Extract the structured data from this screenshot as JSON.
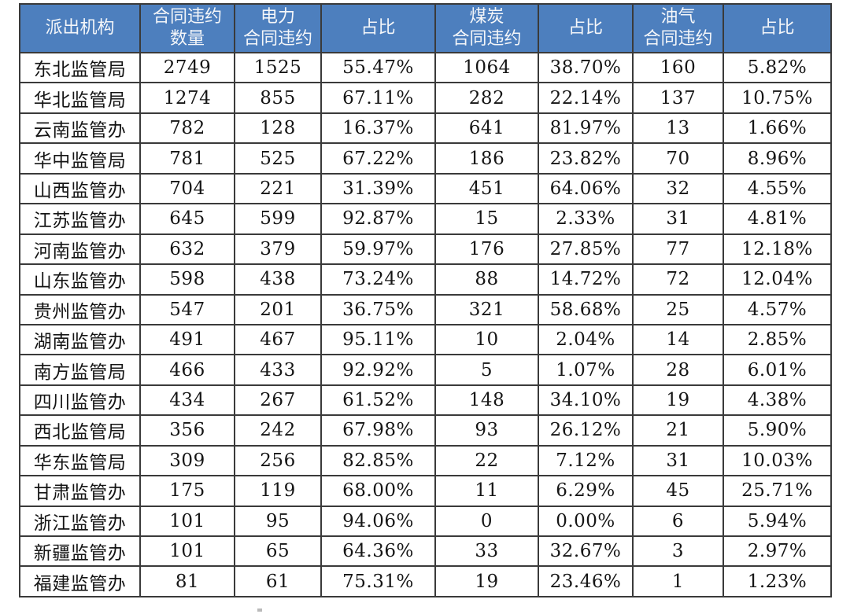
{
  "colors": {
    "header_bg": "#4d7fbe",
    "header_text": "#f4f6f9",
    "grid_border": "#3a3a3a",
    "body_text": "#151515"
  },
  "chart_data": {
    "type": "table",
    "columns": [
      {
        "key": "agency",
        "label": "派出机构"
      },
      {
        "key": "total",
        "label": "合同违约\n数量"
      },
      {
        "key": "power",
        "label": "电力\n合同违约"
      },
      {
        "key": "power-share",
        "label": "占比"
      },
      {
        "key": "coal",
        "label": "煤炭\n合同违约"
      },
      {
        "key": "coal-share",
        "label": "占比"
      },
      {
        "key": "oilgas",
        "label": "油气\n合同违约"
      },
      {
        "key": "oilgas-share",
        "label": "占比"
      }
    ],
    "rows": [
      [
        "东北监管局",
        "2749",
        "1525",
        "55.47%",
        "1064",
        "38.70%",
        "160",
        "5.82%"
      ],
      [
        "华北监管局",
        "1274",
        "855",
        "67.11%",
        "282",
        "22.14%",
        "137",
        "10.75%"
      ],
      [
        "云南监管办",
        "782",
        "128",
        "16.37%",
        "641",
        "81.97%",
        "13",
        "1.66%"
      ],
      [
        "华中监管局",
        "781",
        "525",
        "67.22%",
        "186",
        "23.82%",
        "70",
        "8.96%"
      ],
      [
        "山西监管办",
        "704",
        "221",
        "31.39%",
        "451",
        "64.06%",
        "32",
        "4.55%"
      ],
      [
        "江苏监管办",
        "645",
        "599",
        "92.87%",
        "15",
        "2.33%",
        "31",
        "4.81%"
      ],
      [
        "河南监管办",
        "632",
        "379",
        "59.97%",
        "176",
        "27.85%",
        "77",
        "12.18%"
      ],
      [
        "山东监管办",
        "598",
        "438",
        "73.24%",
        "88",
        "14.72%",
        "72",
        "12.04%"
      ],
      [
        "贵州监管办",
        "547",
        "201",
        "36.75%",
        "321",
        "58.68%",
        "25",
        "4.57%"
      ],
      [
        "湖南监管办",
        "491",
        "467",
        "95.11%",
        "10",
        "2.04%",
        "14",
        "2.85%"
      ],
      [
        "南方监管局",
        "466",
        "433",
        "92.92%",
        "5",
        "1.07%",
        "28",
        "6.01%"
      ],
      [
        "四川监管办",
        "434",
        "267",
        "61.52%",
        "148",
        "34.10%",
        "19",
        "4.38%"
      ],
      [
        "西北监管局",
        "356",
        "242",
        "67.98%",
        "93",
        "26.12%",
        "21",
        "5.90%"
      ],
      [
        "华东监管局",
        "309",
        "256",
        "82.85%",
        "22",
        "7.12%",
        "31",
        "10.03%"
      ],
      [
        "甘肃监管办",
        "175",
        "119",
        "68.00%",
        "11",
        "6.29%",
        "45",
        "25.71%"
      ],
      [
        "浙江监管办",
        "101",
        "95",
        "94.06%",
        "0",
        "0.00%",
        "6",
        "5.94%"
      ],
      [
        "新疆监管办",
        "101",
        "65",
        "64.36%",
        "33",
        "32.67%",
        "3",
        "2.97%"
      ],
      [
        "福建监管办",
        "81",
        "61",
        "75.31%",
        "19",
        "23.46%",
        "1",
        "1.23%"
      ]
    ]
  }
}
